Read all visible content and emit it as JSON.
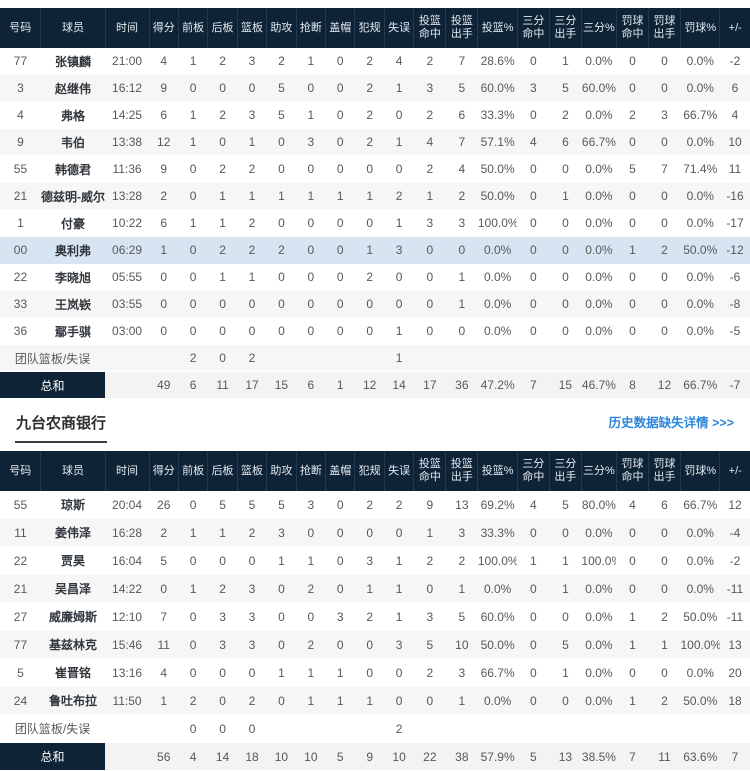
{
  "colors": {
    "header_bg": "#0e2336",
    "stripe": "#f6f6f6",
    "highlight_row": "#d7e5f2",
    "total_label_bg": "#0e2336",
    "link_blue": "#2e87db"
  },
  "columns": [
    {
      "key": "number",
      "label": "号码"
    },
    {
      "key": "player",
      "label": "球员"
    },
    {
      "key": "time",
      "label": "时间"
    },
    {
      "key": "points",
      "label": "得分"
    },
    {
      "key": "off-reb",
      "label": "前板"
    },
    {
      "key": "def-reb",
      "label": "后板"
    },
    {
      "key": "rebounds",
      "label": "篮板"
    },
    {
      "key": "assists",
      "label": "助攻"
    },
    {
      "key": "steals",
      "label": "抢断"
    },
    {
      "key": "blocks",
      "label": "盖帽"
    },
    {
      "key": "fouls",
      "label": "犯规"
    },
    {
      "key": "turnovers",
      "label": "失误"
    },
    {
      "key": "fg-made",
      "label": "投篮\n命中"
    },
    {
      "key": "fg-att",
      "label": "投篮\n出手"
    },
    {
      "key": "fg-pct",
      "label": "投篮%"
    },
    {
      "key": "three-made",
      "label": "三分\n命中"
    },
    {
      "key": "three-att",
      "label": "三分\n出手"
    },
    {
      "key": "three-pct",
      "label": "三分%"
    },
    {
      "key": "ft-made",
      "label": "罚球\n命中"
    },
    {
      "key": "ft-att",
      "label": "罚球\n出手"
    },
    {
      "key": "ft-pct",
      "label": "罚球%"
    },
    {
      "key": "plus-minus",
      "label": "+/-"
    }
  ],
  "table1": {
    "rows": [
      {
        "type": "player",
        "cells": [
          "77",
          "张镇麟",
          "21:00",
          "4",
          "1",
          "2",
          "3",
          "2",
          "1",
          "0",
          "2",
          "4",
          "2",
          "7",
          "28.6%",
          "0",
          "1",
          "0.0%",
          "0",
          "0",
          "0.0%",
          "-2"
        ]
      },
      {
        "type": "player",
        "cells": [
          "3",
          "赵继伟",
          "16:12",
          "9",
          "0",
          "0",
          "0",
          "5",
          "0",
          "0",
          "2",
          "1",
          "3",
          "5",
          "60.0%",
          "3",
          "5",
          "60.0%",
          "0",
          "0",
          "0.0%",
          "6"
        ]
      },
      {
        "type": "player",
        "cells": [
          "4",
          "弗格",
          "14:25",
          "6",
          "1",
          "2",
          "3",
          "5",
          "1",
          "0",
          "2",
          "0",
          "2",
          "6",
          "33.3%",
          "0",
          "2",
          "0.0%",
          "2",
          "3",
          "66.7%",
          "4"
        ]
      },
      {
        "type": "player",
        "cells": [
          "9",
          "韦伯",
          "13:38",
          "12",
          "1",
          "0",
          "1",
          "0",
          "3",
          "0",
          "2",
          "1",
          "4",
          "7",
          "57.1%",
          "4",
          "6",
          "66.7%",
          "0",
          "0",
          "0.0%",
          "10"
        ]
      },
      {
        "type": "player",
        "cells": [
          "55",
          "韩德君",
          "11:36",
          "9",
          "0",
          "2",
          "2",
          "0",
          "0",
          "0",
          "0",
          "0",
          "2",
          "4",
          "50.0%",
          "0",
          "0",
          "0.0%",
          "5",
          "7",
          "71.4%",
          "11"
        ]
      },
      {
        "type": "player",
        "cells": [
          "21",
          "德兹明-威尔斯",
          "13:28",
          "2",
          "0",
          "1",
          "1",
          "1",
          "1",
          "1",
          "1",
          "2",
          "1",
          "2",
          "50.0%",
          "0",
          "1",
          "0.0%",
          "0",
          "0",
          "0.0%",
          "-16"
        ]
      },
      {
        "type": "player",
        "cells": [
          "1",
          "付豪",
          "10:22",
          "6",
          "1",
          "1",
          "2",
          "0",
          "0",
          "0",
          "0",
          "1",
          "3",
          "3",
          "100.0%",
          "0",
          "0",
          "0.0%",
          "0",
          "0",
          "0.0%",
          "-17"
        ]
      },
      {
        "type": "player",
        "highlight": true,
        "cells": [
          "00",
          "奥利弗",
          "06:29",
          "1",
          "0",
          "2",
          "2",
          "2",
          "0",
          "0",
          "1",
          "3",
          "0",
          "0",
          "0.0%",
          "0",
          "0",
          "0.0%",
          "1",
          "2",
          "50.0%",
          "-12"
        ]
      },
      {
        "type": "player",
        "cells": [
          "22",
          "李晓旭",
          "05:55",
          "0",
          "0",
          "1",
          "1",
          "0",
          "0",
          "0",
          "2",
          "0",
          "0",
          "1",
          "0.0%",
          "0",
          "0",
          "0.0%",
          "0",
          "0",
          "0.0%",
          "-6"
        ]
      },
      {
        "type": "player",
        "cells": [
          "33",
          "王岚嵚",
          "03:55",
          "0",
          "0",
          "0",
          "0",
          "0",
          "0",
          "0",
          "0",
          "0",
          "0",
          "1",
          "0.0%",
          "0",
          "0",
          "0.0%",
          "0",
          "0",
          "0.0%",
          "-8"
        ]
      },
      {
        "type": "player",
        "cells": [
          "36",
          "鄢手骐",
          "03:00",
          "0",
          "0",
          "0",
          "0",
          "0",
          "0",
          "0",
          "0",
          "1",
          "0",
          "0",
          "0.0%",
          "0",
          "0",
          "0.0%",
          "0",
          "0",
          "0.0%",
          "-5"
        ]
      },
      {
        "type": "team",
        "cells": [
          "团队篮板/失误",
          "",
          "",
          "",
          "2",
          "0",
          "2",
          "",
          "",
          "",
          "",
          "1",
          "",
          "",
          "",
          "",
          "",
          "",
          "",
          "",
          "",
          ""
        ]
      },
      {
        "type": "total",
        "cells": [
          "总和",
          "",
          "",
          "49",
          "6",
          "11",
          "17",
          "15",
          "6",
          "1",
          "12",
          "14",
          "17",
          "36",
          "47.2%",
          "7",
          "15",
          "46.7%",
          "8",
          "12",
          "66.7%",
          "-7"
        ]
      }
    ]
  },
  "section": {
    "team_name": "九台农商银行",
    "link_label": "历史数据缺失详情 >>>"
  },
  "table2": {
    "rows": [
      {
        "type": "player",
        "cells": [
          "55",
          "琼斯",
          "20:04",
          "26",
          "0",
          "5",
          "5",
          "5",
          "3",
          "0",
          "2",
          "2",
          "9",
          "13",
          "69.2%",
          "4",
          "5",
          "80.0%",
          "4",
          "6",
          "66.7%",
          "12"
        ]
      },
      {
        "type": "player",
        "cells": [
          "11",
          "姜伟泽",
          "16:28",
          "2",
          "1",
          "1",
          "2",
          "3",
          "0",
          "0",
          "0",
          "0",
          "1",
          "3",
          "33.3%",
          "0",
          "0",
          "0.0%",
          "0",
          "0",
          "0.0%",
          "-4"
        ]
      },
      {
        "type": "player",
        "cells": [
          "22",
          "贾昊",
          "16:04",
          "5",
          "0",
          "0",
          "0",
          "1",
          "1",
          "0",
          "3",
          "1",
          "2",
          "2",
          "100.0%",
          "1",
          "1",
          "100.0%",
          "0",
          "0",
          "0.0%",
          "-2"
        ]
      },
      {
        "type": "player",
        "cells": [
          "21",
          "吴昌泽",
          "14:22",
          "0",
          "1",
          "2",
          "3",
          "0",
          "2",
          "0",
          "1",
          "1",
          "0",
          "1",
          "0.0%",
          "0",
          "1",
          "0.0%",
          "0",
          "0",
          "0.0%",
          "-11"
        ]
      },
      {
        "type": "player",
        "cells": [
          "27",
          "威廉姆斯",
          "12:10",
          "7",
          "0",
          "3",
          "3",
          "0",
          "0",
          "3",
          "2",
          "1",
          "3",
          "5",
          "60.0%",
          "0",
          "0",
          "0.0%",
          "1",
          "2",
          "50.0%",
          "-11"
        ]
      },
      {
        "type": "player",
        "cells": [
          "77",
          "基兹林克",
          "15:46",
          "11",
          "0",
          "3",
          "3",
          "0",
          "2",
          "0",
          "0",
          "3",
          "5",
          "10",
          "50.0%",
          "0",
          "5",
          "0.0%",
          "1",
          "1",
          "100.0%",
          "13"
        ]
      },
      {
        "type": "player",
        "cells": [
          "5",
          "崔晋铭",
          "13:16",
          "4",
          "0",
          "0",
          "0",
          "1",
          "1",
          "1",
          "0",
          "0",
          "2",
          "3",
          "66.7%",
          "0",
          "1",
          "0.0%",
          "0",
          "0",
          "0.0%",
          "20"
        ]
      },
      {
        "type": "player",
        "cells": [
          "24",
          "鲁吐布拉",
          "11:50",
          "1",
          "2",
          "0",
          "2",
          "0",
          "1",
          "1",
          "1",
          "0",
          "0",
          "1",
          "0.0%",
          "0",
          "0",
          "0.0%",
          "1",
          "2",
          "50.0%",
          "18"
        ]
      },
      {
        "type": "team",
        "cells": [
          "团队篮板/失误",
          "",
          "",
          "",
          "0",
          "0",
          "0",
          "",
          "",
          "",
          "",
          "2",
          "",
          "",
          "",
          "",
          "",
          "",
          "",
          "",
          "",
          ""
        ]
      },
      {
        "type": "total",
        "cells": [
          "总和",
          "",
          "",
          "56",
          "4",
          "14",
          "18",
          "10",
          "10",
          "5",
          "9",
          "10",
          "22",
          "38",
          "57.9%",
          "5",
          "13",
          "38.5%",
          "7",
          "11",
          "63.6%",
          "7"
        ]
      }
    ]
  }
}
